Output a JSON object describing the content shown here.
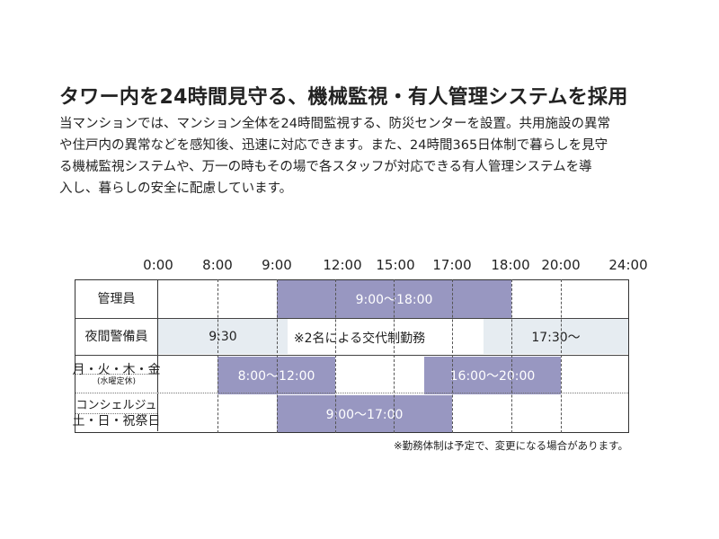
{
  "title": "タワー内を24時間見守る、機械監視・有人管理システムを採用",
  "description": [
    "当マンションでは、マンション全体を24時間監視する、防災センターを設置。共用施設の異常",
    "や住戸内の異常などを感知後、迅速に対応できます。また、24時間365日体制で暮らしを見守",
    "る機械監視システムや、万一の時もその場で各スタッフが対応できる有人管理システムを導",
    "入し、暮らしの安全に配慮しています。"
  ],
  "schedule": {
    "time_ticks": [
      "0:00",
      "8:00",
      "9:00",
      "12:00",
      "15:00",
      "17:00",
      "18:00",
      "20:00",
      "24:00"
    ],
    "rows": {
      "manager": {
        "label": "管理員",
        "hours": "9:00〜18:00"
      },
      "guard": {
        "label": "夜間警備員",
        "start_text": "9:30",
        "middle_text": "※2名による交代制勤務",
        "end_text": "17:30〜"
      },
      "concierge_weekday": {
        "label": "月・火・木・金",
        "sub_label": "(水曜定休)",
        "morning": "8:00〜12:00",
        "evening": "16:00〜20:00"
      },
      "concierge": {
        "label": "コンシェルジュ"
      },
      "concierge_weekend": {
        "label": "土・日・祝祭日",
        "hours": "9:00〜17:00"
      }
    },
    "note": "※勤務体制は予定で、変更になる場合があります。"
  },
  "colors": {
    "staffed_bar": "#9897c1",
    "guard_bar": "#e6ecf1"
  }
}
